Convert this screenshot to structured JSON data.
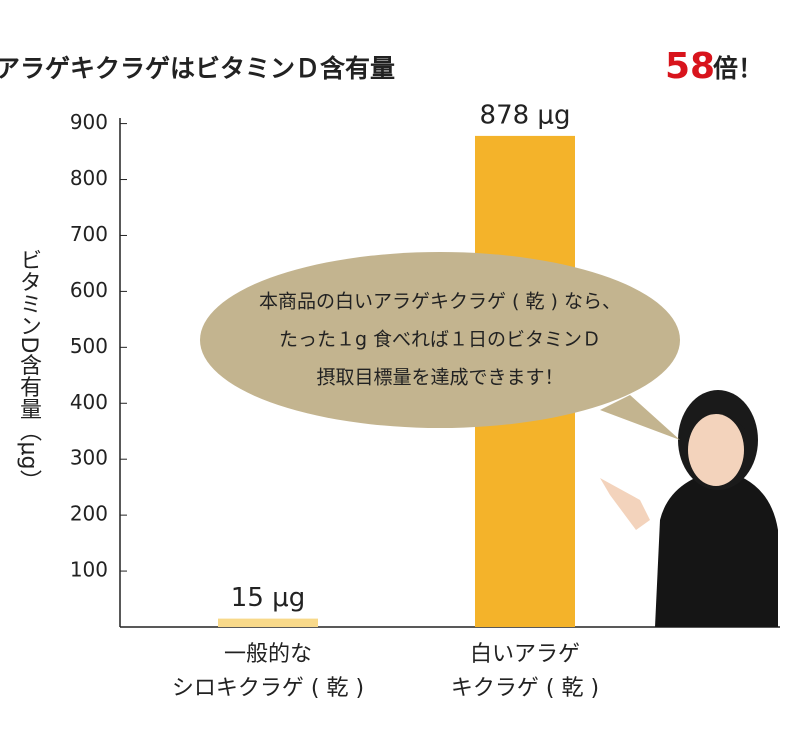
{
  "chart_data": {
    "type": "bar",
    "title": "白いアラゲキクラゲはビタミンＤ含有量",
    "title_highlight": "58",
    "title_suffix": "倍！",
    "y_label": "ビタミンD含有量（μg）",
    "categories": [
      "一般的な\nシロキクラゲ ( 乾 )",
      "白いアラゲ\nキクラゲ ( 乾 )"
    ],
    "values": [
      15,
      878
    ],
    "value_labels": [
      "15 μg",
      "878 μg"
    ],
    "colors": [
      "#f8d98a",
      "#f4b32a"
    ],
    "ylim": [
      0,
      910
    ],
    "yticks": [
      100,
      200,
      300,
      400,
      500,
      600,
      700,
      800,
      900
    ],
    "annotation": [
      "本商品の白いアラゲキクラゲ ( 乾 ) なら、",
      "たった１g 食べれば１日のビタミンＤ",
      "摂取目標量を達成できます！"
    ]
  }
}
